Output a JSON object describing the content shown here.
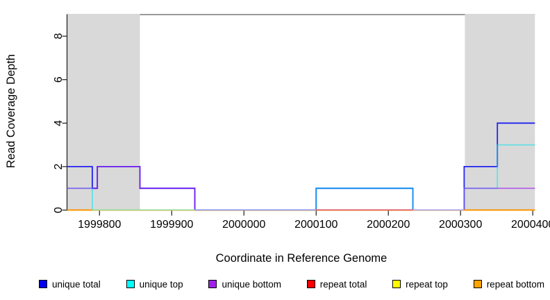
{
  "chart_data": {
    "type": "line",
    "subtype": "step-coverage",
    "title": "",
    "xlabel": "Coordinate in Reference Genome",
    "ylabel": "Read Coverage Depth",
    "xlim": [
      1999755,
      2000403
    ],
    "ylim": [
      0,
      9.4
    ],
    "x_ticks": [
      1999800,
      1999900,
      2000000,
      2000100,
      2000200,
      2000300,
      2000400
    ],
    "y_ticks": [
      0,
      2,
      4,
      6,
      8
    ],
    "grid": false,
    "legend_position": "bottom",
    "shaded_regions": [
      {
        "x0": 1999755,
        "x1": 1999856,
        "color": "#d9d9d9"
      },
      {
        "x0": 2000306,
        "x1": 2000403,
        "color": "#d9d9d9"
      }
    ],
    "series": [
      {
        "name": "unique total",
        "color": "#2222f2",
        "legend_color": "#0000ee",
        "opacity": 1,
        "points": [
          [
            1999755,
            2
          ],
          [
            1999790,
            1
          ],
          [
            1999797,
            2
          ],
          [
            1999856,
            1
          ],
          [
            1999932,
            0
          ],
          [
            2000100,
            1
          ],
          [
            2000234,
            0
          ],
          [
            2000305,
            2
          ],
          [
            2000351,
            4
          ]
        ]
      },
      {
        "name": "unique top",
        "color": "#00e8f0",
        "legend_color": "#00ffff",
        "opacity": 0.55,
        "points": [
          [
            1999755,
            1
          ],
          [
            1999790,
            0
          ],
          [
            2000100,
            1
          ],
          [
            2000234,
            0
          ],
          [
            2000305,
            1
          ],
          [
            2000351,
            3
          ]
        ]
      },
      {
        "name": "unique bottom",
        "color": "#a020f0",
        "legend_color": "#a020f0",
        "opacity": 0.6,
        "points": [
          [
            1999755,
            1
          ],
          [
            1999797,
            2
          ],
          [
            1999856,
            1
          ],
          [
            1999932,
            0
          ],
          [
            2000305,
            1
          ]
        ]
      },
      {
        "name": "repeat total",
        "color": "#ff0000",
        "legend_color": "#ff0000",
        "opacity": 0.9,
        "points": [
          [
            1999755,
            0
          ]
        ]
      },
      {
        "name": "repeat top",
        "color": "#ffff00",
        "legend_color": "#ffff00",
        "opacity": 0.9,
        "points": [
          [
            1999755,
            0
          ]
        ]
      },
      {
        "name": "repeat bottom",
        "color": "#ffa500",
        "legend_color": "#ffa500",
        "opacity": 1,
        "points": [
          [
            1999755,
            0
          ]
        ]
      }
    ],
    "zero_line_segments": [
      {
        "x0": 1999755,
        "x1": 1999790,
        "color": "#ff9100"
      },
      {
        "x0": 1999790,
        "x1": 1999932,
        "color": "#98d89a"
      },
      {
        "x0": 1999932,
        "x1": 2000100,
        "color": "#8890ee"
      },
      {
        "x0": 2000100,
        "x1": 2000234,
        "color": "#e05565"
      },
      {
        "x0": 2000234,
        "x1": 2000305,
        "color": "#a9a0ee"
      },
      {
        "x0": 2000305,
        "x1": 2000403,
        "color": "#ff9100"
      }
    ]
  },
  "colors": {
    "plot_top_border": "#5c5c5c",
    "axis": "#1a1a1a",
    "text": "#000000",
    "background": "#ffffff"
  }
}
